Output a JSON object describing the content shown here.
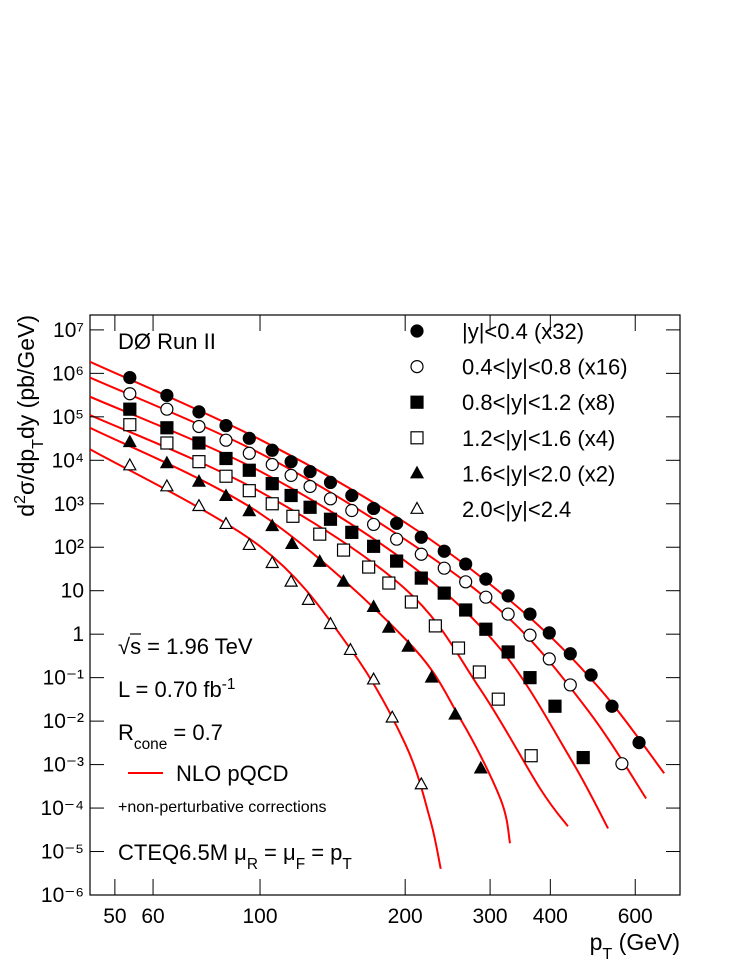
{
  "chart_data": {
    "type": "scatter",
    "xscale": "log",
    "yscale": "log",
    "xlim": [
      44.4,
      743
    ],
    "ylim": [
      1e-06,
      22000000
    ],
    "xticks": [
      50,
      60,
      100,
      200,
      300,
      400,
      600
    ],
    "yticks": [
      {
        "value": 1e-06,
        "label": "10⁻⁶"
      },
      {
        "value": 1e-05,
        "label": "10⁻⁵"
      },
      {
        "value": 0.0001,
        "label": "10⁻⁴"
      },
      {
        "value": 0.001,
        "label": "10⁻³"
      },
      {
        "value": 0.01,
        "label": "10⁻²"
      },
      {
        "value": 0.1,
        "label": "10⁻¹"
      },
      1,
      10,
      {
        "value": 100,
        "label": "10²"
      },
      {
        "value": 1000,
        "label": "10³"
      },
      {
        "value": 10000,
        "label": "10⁴"
      },
      {
        "value": 100000,
        "label": "10⁵"
      },
      {
        "value": 1000000,
        "label": "10⁶"
      },
      {
        "value": 10000000,
        "label": "10⁷"
      }
    ],
    "xlabel": [
      {
        "t": "p"
      },
      {
        "sub": "T"
      },
      {
        "t": " (GeV)"
      }
    ],
    "ylabel": [
      {
        "t": "d"
      },
      {
        "sup": "2"
      },
      {
        "t": "σ/dp"
      },
      {
        "sub": "T"
      },
      {
        "t": "dy (pb/GeV)"
      }
    ],
    "legend": "upper right",
    "series": [
      {
        "name": "|y|<0.4 (x32)",
        "marker": "circle",
        "filled": true,
        "color": "#000000",
        "x": [
          53.7,
          64.1,
          74.7,
          85,
          95,
          106,
          116,
          127,
          140,
          155,
          172,
          192,
          216,
          241,
          267,
          294,
          327,
          363,
          398,
          440,
          486,
          537,
          611
        ],
        "values": [
          800000,
          310000,
          130000,
          63000,
          32000,
          17000,
          9300,
          5500,
          3100,
          1550,
          780,
          355,
          170,
          81,
          41,
          18.5,
          7.6,
          2.9,
          1.07,
          0.355,
          0.115,
          0.022,
          0.0032
        ]
      },
      {
        "name": "0.4<|y|<0.8 (x16)",
        "marker": "circle",
        "filled": false,
        "color": "#000000",
        "x": [
          53.7,
          64.1,
          74.7,
          85,
          95,
          106,
          116,
          127,
          140,
          155,
          172,
          192,
          216,
          241,
          267,
          294,
          327,
          363,
          398,
          440,
          563
        ],
        "values": [
          340000,
          150000,
          60000,
          29000,
          14500,
          8000,
          4500,
          2500,
          1300,
          700,
          335,
          153,
          69,
          33,
          16,
          7.1,
          2.9,
          0.95,
          0.27,
          0.068,
          0.00105
        ]
      },
      {
        "name": "0.8<|y|<1.2 (x8)",
        "marker": "square",
        "filled": true,
        "color": "#000000",
        "x": [
          53.7,
          64.1,
          74.7,
          85,
          95,
          106,
          116,
          127,
          140,
          155,
          172,
          192,
          216,
          241,
          267,
          294,
          327,
          363,
          409,
          468
        ],
        "values": [
          150000,
          56000,
          25000,
          11000,
          5900,
          2900,
          1550,
          830,
          440,
          220,
          105,
          48,
          19.5,
          8.8,
          3.6,
          1.3,
          0.39,
          0.1,
          0.022,
          0.00145
        ]
      },
      {
        "name": "1.2<|y|<1.6 (x4)",
        "marker": "square",
        "filled": false,
        "color": "#000000",
        "x": [
          53.7,
          64.1,
          74.7,
          85,
          95,
          106,
          117,
          133,
          149,
          168,
          185,
          206,
          231,
          258,
          285,
          312,
          365
        ],
        "values": [
          66000,
          25000,
          9300,
          4300,
          2000,
          1000,
          515,
          200,
          86,
          35,
          15,
          5.5,
          1.55,
          0.48,
          0.135,
          0.032,
          0.0016
        ]
      },
      {
        "name": "1.6<|y|<2.0 (x2)",
        "marker": "triangle",
        "filled": true,
        "color": "#000000",
        "x": [
          53.7,
          64.1,
          74.7,
          85,
          95,
          106,
          116.5,
          133,
          149,
          172,
          185,
          203,
          227,
          254,
          287
        ],
        "values": [
          26000,
          8500,
          3200,
          1500,
          670,
          305,
          118,
          46,
          16,
          4.2,
          1.4,
          0.51,
          0.1,
          0.014,
          0.00081
        ]
      },
      {
        "name": "2.0<|y|<2.4",
        "marker": "triangle",
        "filled": false,
        "color": "#000000",
        "x": [
          53.7,
          64.1,
          74.7,
          85,
          95,
          106,
          116,
          126,
          140,
          154,
          172,
          188,
          216
        ],
        "values": [
          7600,
          2500,
          880,
          340,
          112,
          43,
          16,
          6.1,
          1.7,
          0.43,
          0.09,
          0.012,
          0.00035
        ]
      }
    ],
    "theory": {
      "name": "NLO pQCD",
      "note": "+non-perturbative corrections",
      "color": "#ff0000",
      "curves": [
        {
          "x": [
            44.4,
            100,
            200,
            346,
            507,
            689
          ],
          "values": [
            1850000,
            30000,
            370,
            3.8,
            0.055,
            0.00063
          ]
        },
        {
          "x": [
            44.4,
            100,
            200,
            330,
            484,
            632
          ],
          "values": [
            800000,
            14500,
            150,
            2.2,
            0.015,
            0.000166
          ]
        },
        {
          "x": [
            44.4,
            100,
            200,
            315,
            440,
            527
          ],
          "values": [
            290000,
            5600,
            48,
            0.46,
            0.0014,
            3.4e-05
          ]
        },
        {
          "x": [
            44.4,
            100,
            200,
            286,
            381,
            435
          ],
          "values": [
            110000,
            1900,
            11,
            0.055,
            0.00028,
            3.8e-05
          ]
        },
        {
          "x": [
            44.4,
            100,
            200,
            260,
            315,
            330
          ],
          "values": [
            56000,
            600,
            0.78,
            0.0115,
            0.000166,
            1.55e-05
          ]
        },
        {
          "x": [
            44.4,
            100,
            154,
            200,
            225,
            237
          ],
          "values": [
            18000,
            105,
            0.46,
            0.003,
            5.8e-05,
            4e-06
          ]
        }
      ]
    },
    "annotations": [
      [
        {
          "t": "DØ Run II"
        }
      ],
      [
        {
          "t": "√s = 1.96 TeV"
        }
      ],
      [
        {
          "t": "L = 0.70 fb"
        },
        {
          "sup": "-1"
        }
      ],
      [
        {
          "t": "R"
        },
        {
          "sub": "cone"
        },
        {
          "t": " = 0.7"
        }
      ],
      [
        {
          "t": "CTEQ6.5M  μ"
        },
        {
          "sub": "R"
        },
        {
          "t": " = μ"
        },
        {
          "sub": "F"
        },
        {
          "t": " = p"
        },
        {
          "sub": "T"
        }
      ]
    ]
  }
}
